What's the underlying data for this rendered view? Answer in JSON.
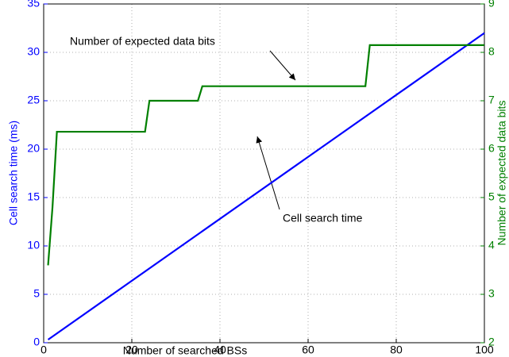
{
  "chart_data": {
    "type": "line",
    "xlabel": "Number of searched BSs",
    "ylabel": "Cell search time (ms)",
    "y2label": "Number of expected data bits",
    "xlim": [
      0,
      100
    ],
    "xticks": [
      0,
      20,
      40,
      60,
      80,
      100
    ],
    "ylim": [
      0,
      35
    ],
    "yticks": [
      0,
      5,
      10,
      15,
      20,
      25,
      30,
      35
    ],
    "y2lim": [
      2,
      9
    ],
    "y2ticks": [
      2,
      3,
      4,
      5,
      6,
      7,
      8,
      9
    ],
    "grid": true,
    "series": [
      {
        "name": "Cell search time",
        "color": "#0000ff",
        "x": [
          1,
          100
        ],
        "values": [
          0.32,
          32
        ]
      },
      {
        "name": "Number of expected data bits",
        "color": "#008000",
        "axis": "y2",
        "x": [
          1,
          2,
          3,
          23,
          24,
          35,
          36,
          73,
          74,
          100
        ],
        "values": [
          3.6,
          4.8,
          6.36,
          6.36,
          7.0,
          7.0,
          7.3,
          7.3,
          8.15,
          8.15
        ]
      }
    ],
    "annotations": [
      "Number of expected data bits",
      "Cell search time"
    ]
  }
}
